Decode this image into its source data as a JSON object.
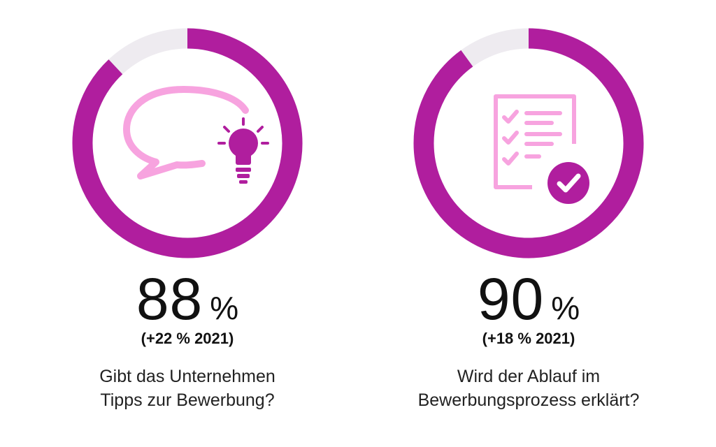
{
  "colors": {
    "accent": "#B01E9E",
    "track": "#EEEBF0",
    "light_pink": "#F7A3DF"
  },
  "chart_data": [
    {
      "type": "donut",
      "value": 88,
      "max": 100,
      "value_label": "88",
      "unit": "%",
      "delta_label": "(+22 % 2021)",
      "question_lines": [
        "Gibt das Unternehmen",
        "Tipps zur Bewerbung?"
      ],
      "icon": "speech-bubble-lightbulb-icon"
    },
    {
      "type": "donut",
      "value": 90,
      "max": 100,
      "value_label": "90",
      "unit": "%",
      "delta_label": "(+18 % 2021)",
      "question_lines": [
        "Wird der Ablauf im",
        "Bewerbungsprozess erklärt?"
      ],
      "icon": "checklist-icon"
    }
  ]
}
